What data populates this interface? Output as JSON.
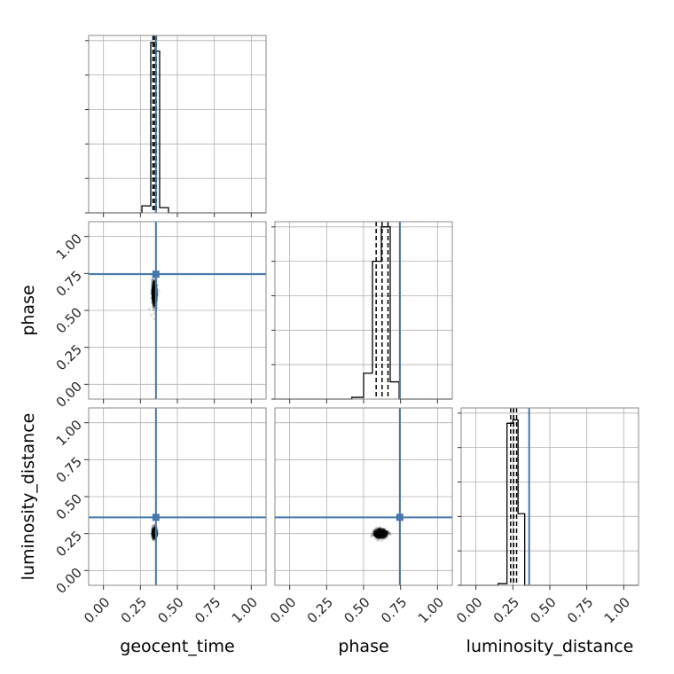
{
  "chart_data": {
    "type": "corner",
    "parameters": [
      "geocent_time",
      "phase",
      "luminosity_distance"
    ],
    "axis_range": [
      -0.1,
      1.1
    ],
    "tick_labels": [
      "0.00",
      "0.25",
      "0.50",
      "0.75",
      "1.00"
    ],
    "ticks": [
      0.0,
      0.25,
      0.5,
      0.75,
      1.0
    ],
    "grid": true,
    "truths": {
      "color": "#4477AA",
      "values": [
        0.355,
        0.745,
        0.36
      ]
    },
    "histograms": [
      {
        "parameter": "geocent_time",
        "bin_edges": [
          0.26,
          0.32,
          0.35,
          0.38,
          0.44
        ],
        "counts": [
          0.04,
          0.98,
          0.93,
          0.03
        ],
        "ymax": 1.02,
        "quantiles": [
          0.335,
          0.345,
          0.358
        ]
      },
      {
        "parameter": "phase",
        "bin_edges": [
          0.42,
          0.5,
          0.56,
          0.62,
          0.68,
          0.74
        ],
        "counts": [
          0.01,
          0.15,
          0.8,
          1.0,
          0.1
        ],
        "ymax": 1.03,
        "quantiles": [
          0.585,
          0.625,
          0.665
        ]
      },
      {
        "parameter": "luminosity_distance",
        "bin_edges": [
          0.15,
          0.21,
          0.25,
          0.285,
          0.33
        ],
        "counts": [
          0.01,
          0.95,
          0.97,
          0.42
        ],
        "ymax": 1.04,
        "quantiles": [
          0.235,
          0.255,
          0.275
        ]
      }
    ],
    "scatter_panels": [
      {
        "x": "geocent_time",
        "y": "phase",
        "center": [
          0.345,
          0.615
        ],
        "spread": [
          0.016,
          0.085
        ]
      },
      {
        "x": "geocent_time",
        "y": "luminosity_distance",
        "center": [
          0.345,
          0.255
        ],
        "spread": [
          0.014,
          0.035
        ]
      },
      {
        "x": "phase",
        "y": "luminosity_distance",
        "center": [
          0.615,
          0.25
        ],
        "spread": [
          0.045,
          0.03
        ]
      }
    ]
  }
}
